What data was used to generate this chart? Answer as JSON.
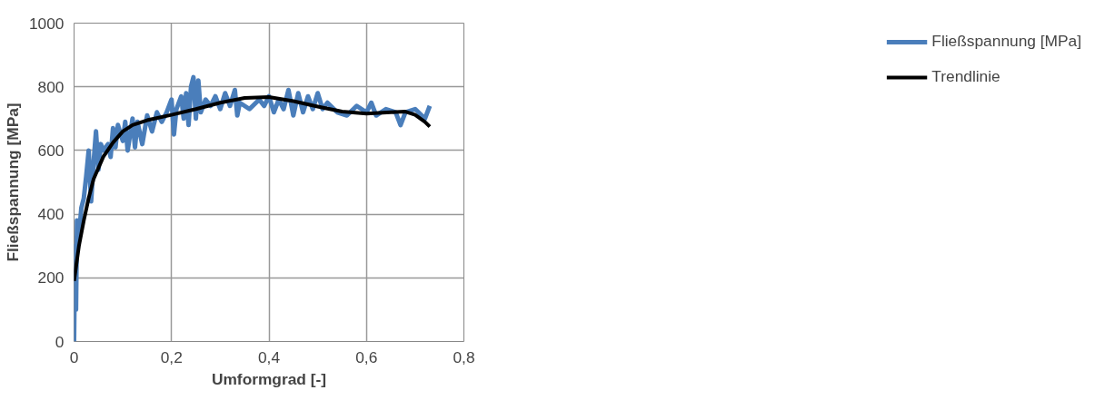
{
  "chart_data": {
    "type": "line",
    "xlabel": "Umformgrad [-]",
    "ylabel": "Fließspannung [MPa]",
    "xlim": [
      0,
      0.8
    ],
    "xticks": [
      {
        "value": 0,
        "label": "0"
      },
      {
        "value": 0.2,
        "label": "0,2"
      },
      {
        "value": 0.4,
        "label": "0,4"
      },
      {
        "value": 0.6,
        "label": "0,6"
      },
      {
        "value": 0.8,
        "label": "0,8"
      }
    ],
    "ylim": [
      0,
      1000
    ],
    "yticks": [
      0,
      200,
      400,
      600,
      800,
      1000
    ],
    "grid": true,
    "legend": "right",
    "marker": "none",
    "line_style": "solid",
    "series": [
      {
        "name": "Fließspannung [MPa]",
        "color": "#4a7ebb",
        "x": [
          0,
          0.002,
          0.004,
          0.006,
          0.01,
          0.015,
          0.02,
          0.025,
          0.03,
          0.035,
          0.04,
          0.045,
          0.05,
          0.055,
          0.06,
          0.07,
          0.075,
          0.08,
          0.085,
          0.09,
          0.1,
          0.105,
          0.11,
          0.12,
          0.125,
          0.13,
          0.14,
          0.15,
          0.16,
          0.17,
          0.18,
          0.19,
          0.2,
          0.205,
          0.21,
          0.22,
          0.225,
          0.23,
          0.235,
          0.24,
          0.245,
          0.25,
          0.255,
          0.26,
          0.27,
          0.28,
          0.29,
          0.3,
          0.31,
          0.32,
          0.33,
          0.335,
          0.34,
          0.36,
          0.38,
          0.39,
          0.4,
          0.41,
          0.42,
          0.43,
          0.44,
          0.45,
          0.46,
          0.47,
          0.48,
          0.49,
          0.5,
          0.51,
          0.52,
          0.54,
          0.56,
          0.58,
          0.6,
          0.61,
          0.62,
          0.64,
          0.66,
          0.67,
          0.68,
          0.7,
          0.72,
          0.73
        ],
        "values": [
          0,
          300,
          100,
          380,
          330,
          420,
          450,
          520,
          600,
          440,
          560,
          660,
          540,
          620,
          600,
          620,
          580,
          670,
          610,
          680,
          630,
          690,
          600,
          700,
          610,
          690,
          620,
          710,
          660,
          720,
          690,
          720,
          760,
          650,
          730,
          770,
          700,
          780,
          680,
          800,
          830,
          700,
          820,
          720,
          760,
          740,
          770,
          730,
          780,
          740,
          790,
          710,
          750,
          730,
          760,
          740,
          770,
          720,
          760,
          730,
          790,
          710,
          780,
          720,
          770,
          730,
          780,
          730,
          750,
          720,
          710,
          740,
          720,
          750,
          710,
          730,
          720,
          680,
          720,
          730,
          700,
          740
        ]
      },
      {
        "name": "Trendlinie",
        "color": "#000000",
        "x": [
          0,
          0.01,
          0.02,
          0.03,
          0.04,
          0.06,
          0.08,
          0.1,
          0.12,
          0.15,
          0.2,
          0.25,
          0.3,
          0.35,
          0.4,
          0.45,
          0.5,
          0.55,
          0.6,
          0.65,
          0.68,
          0.7,
          0.72,
          0.73
        ],
        "values": [
          190,
          300,
          380,
          450,
          510,
          580,
          625,
          660,
          680,
          695,
          712,
          730,
          750,
          765,
          768,
          755,
          738,
          722,
          716,
          720,
          722,
          712,
          690,
          675
        ]
      }
    ]
  }
}
